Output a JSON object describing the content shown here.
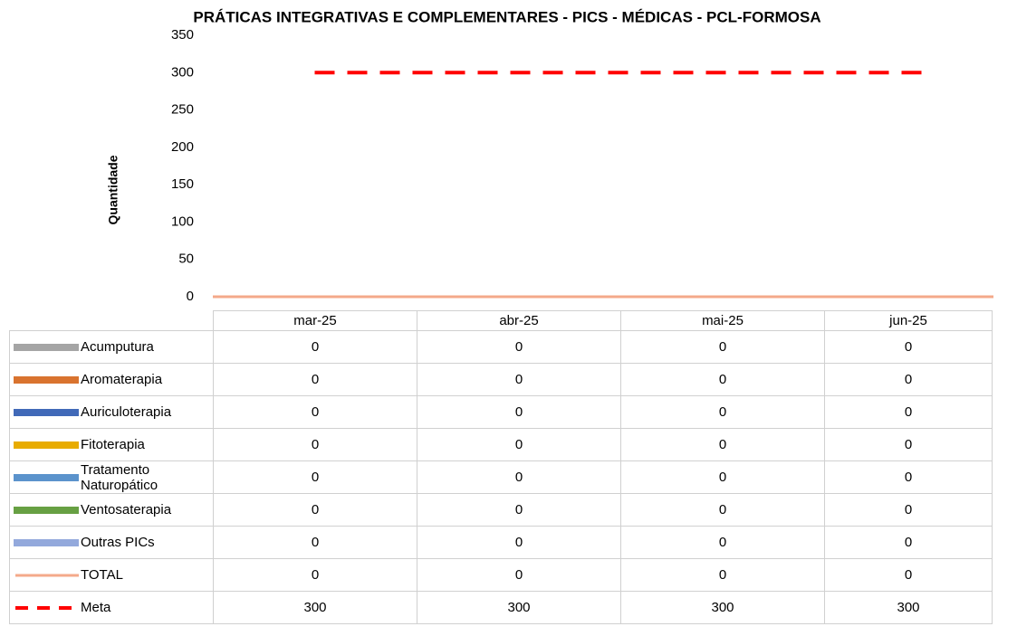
{
  "chart_data": {
    "type": "bar",
    "stacked": true,
    "title": "PRÁTICAS INTEGRATIVAS E COMPLEMENTARES - PICS - MÉDICAS - PCL-FORMOSA",
    "y_label": "Quantidade",
    "categories": [
      "mar-25",
      "abr-25",
      "mai-25",
      "jun-25"
    ],
    "ylim": [
      0,
      350
    ],
    "yticks": [
      0,
      50,
      100,
      150,
      200,
      250,
      300,
      350
    ],
    "data_table": true,
    "series": [
      {
        "name": "Acumputura",
        "color": "#a5a5a5",
        "values": [
          0,
          0,
          0,
          0
        ]
      },
      {
        "name": "Aromaterapia",
        "color": "#d9732f",
        "values": [
          0,
          0,
          0,
          0
        ]
      },
      {
        "name": "Auriculoterapia",
        "color": "#4169b8",
        "values": [
          0,
          0,
          0,
          0
        ]
      },
      {
        "name": "Fitoterapia",
        "color": "#e8ac00",
        "values": [
          0,
          0,
          0,
          0
        ]
      },
      {
        "name": "Tratamento Naturopático",
        "color": "#5b93cc",
        "values": [
          0,
          0,
          0,
          0
        ]
      },
      {
        "name": "Ventosaterapia",
        "color": "#67a043",
        "values": [
          0,
          0,
          0,
          0
        ]
      },
      {
        "name": "Outras PICs",
        "color": "#93a9dc",
        "values": [
          0,
          0,
          0,
          0
        ]
      },
      {
        "name": "TOTAL",
        "type": "line",
        "color": "#f4a98a",
        "values": [
          0,
          0,
          0,
          0
        ]
      },
      {
        "name": "Meta",
        "type": "line",
        "dashed": true,
        "color": "#ff0000",
        "values": [
          300,
          300,
          300,
          300
        ]
      }
    ]
  }
}
